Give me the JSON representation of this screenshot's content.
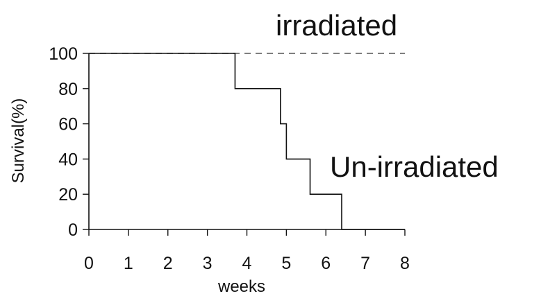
{
  "chart_data": {
    "type": "line",
    "xlabel": "weeks",
    "ylabel": "Survival(%)",
    "xlim": [
      0,
      8
    ],
    "ylim": [
      0,
      100
    ],
    "x_ticks": [
      "0",
      "1",
      "2",
      "3",
      "4",
      "5",
      "6",
      "7",
      "8"
    ],
    "y_ticks": [
      "0",
      "20",
      "40",
      "60",
      "80",
      "100"
    ],
    "step": true,
    "grid": false,
    "series": [
      {
        "name": "irradiated",
        "style": "dashed",
        "color": "#555555",
        "x": [
          0,
          8
        ],
        "y": [
          100,
          100
        ]
      },
      {
        "name": "Un-irradiated",
        "style": "solid",
        "color": "#111111",
        "x": [
          0,
          3.7,
          4.85,
          5.0,
          5.6,
          6.4,
          8
        ],
        "y": [
          100,
          80,
          60,
          40,
          20,
          0,
          0
        ]
      }
    ]
  }
}
